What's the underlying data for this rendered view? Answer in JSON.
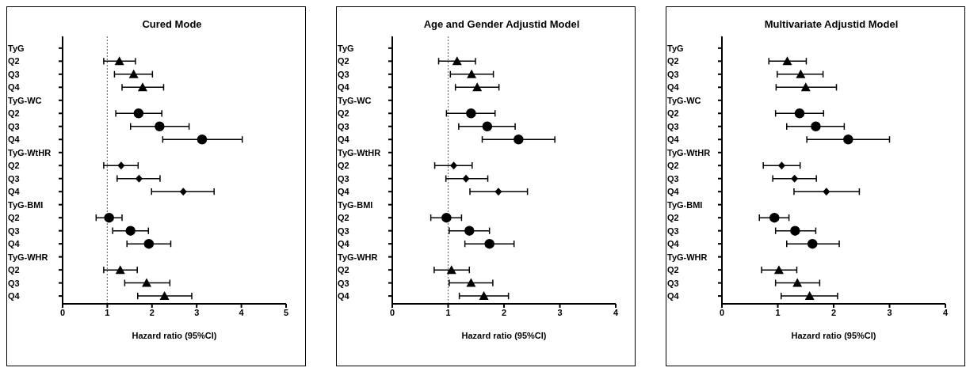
{
  "chart_data": [
    {
      "type": "scatter",
      "orientation": "horizontal",
      "title": "Cured Mode",
      "xlabel": "Hazard ratio (95%CI)",
      "categories": [
        "TyG",
        "Q2",
        "Q3",
        "Q4",
        "TyG-WC",
        "Q2",
        "Q3",
        "Q4",
        "TyG-WtHR",
        "Q2",
        "Q3",
        "Q4",
        "TyG-BMI",
        "Q2",
        "Q3",
        "Q4",
        "TyG-WHR",
        "Q2",
        "Q3",
        "Q4"
      ],
      "xlim": [
        0,
        5
      ],
      "xticks": [
        0,
        1,
        2,
        3,
        4,
        5
      ],
      "grid": false,
      "ref_lines": [
        {
          "axis": "x",
          "value": 1,
          "line_style": "dotted",
          "color": "#777777"
        }
      ],
      "series": [
        {
          "color": "#000000",
          "marker": "triangle",
          "values": [
            null,
            1.27,
            1.59,
            1.79,
            null,
            null,
            null,
            null,
            null,
            null,
            null,
            null,
            null,
            null,
            null,
            null,
            null,
            null,
            null,
            null
          ],
          "errors": [
            null,
            [
              0.92,
              1.63
            ],
            [
              1.16,
              2.01
            ],
            [
              1.33,
              2.26
            ],
            null,
            null,
            null,
            null,
            null,
            null,
            null,
            null,
            null,
            null,
            null,
            null,
            null,
            null,
            null,
            null
          ]
        },
        {
          "color": "#000000",
          "marker": "circle",
          "values": [
            null,
            null,
            null,
            null,
            null,
            1.7,
            2.17,
            3.12,
            null,
            null,
            null,
            null,
            null,
            null,
            null,
            null,
            null,
            null,
            null,
            null
          ],
          "errors": [
            null,
            null,
            null,
            null,
            null,
            [
              1.19,
              2.22
            ],
            [
              1.52,
              2.83
            ],
            [
              2.24,
              4.02
            ],
            null,
            null,
            null,
            null,
            null,
            null,
            null,
            null,
            null,
            null,
            null,
            null
          ]
        },
        {
          "color": "#000000",
          "marker": "diamond",
          "values": [
            null,
            null,
            null,
            null,
            null,
            null,
            null,
            null,
            null,
            1.31,
            1.71,
            2.7,
            null,
            null,
            null,
            null,
            null,
            null,
            null,
            null
          ],
          "errors": [
            null,
            null,
            null,
            null,
            null,
            null,
            null,
            null,
            null,
            [
              0.92,
              1.69
            ],
            [
              1.22,
              2.18
            ],
            [
              1.99,
              3.39
            ],
            null,
            null,
            null,
            null,
            null,
            null,
            null,
            null
          ]
        },
        {
          "color": "#000000",
          "marker": "circle",
          "values": [
            null,
            null,
            null,
            null,
            null,
            null,
            null,
            null,
            null,
            null,
            null,
            null,
            null,
            1.04,
            1.52,
            1.93,
            null,
            null,
            null,
            null
          ],
          "errors": [
            null,
            null,
            null,
            null,
            null,
            null,
            null,
            null,
            null,
            null,
            null,
            null,
            null,
            [
              0.75,
              1.33
            ],
            [
              1.12,
              1.92
            ],
            [
              1.44,
              2.42
            ],
            null,
            null,
            null,
            null
          ]
        },
        {
          "color": "#000000",
          "marker": "triangle",
          "values": [
            null,
            null,
            null,
            null,
            null,
            null,
            null,
            null,
            null,
            null,
            null,
            null,
            null,
            null,
            null,
            null,
            null,
            1.29,
            1.88,
            2.28
          ],
          "errors": [
            null,
            null,
            null,
            null,
            null,
            null,
            null,
            null,
            null,
            null,
            null,
            null,
            null,
            null,
            null,
            null,
            null,
            [
              0.92,
              1.67
            ],
            [
              1.39,
              2.4
            ],
            [
              1.68,
              2.89
            ]
          ]
        }
      ]
    },
    {
      "type": "scatter",
      "orientation": "horizontal",
      "title": "Age and Gender Adjustid Model",
      "xlabel": "Hazard ratio (95%CI)",
      "categories": [
        "TyG",
        "Q2",
        "Q3",
        "Q4",
        "TyG-WC",
        "Q2",
        "Q3",
        "Q4",
        "TyG-WtHR",
        "Q2",
        "Q3",
        "Q4",
        "TyG-BMI",
        "Q2",
        "Q3",
        "Q4",
        "TyG-WHR",
        "Q2",
        "Q3",
        "Q4"
      ],
      "xlim": [
        0,
        4
      ],
      "xticks": [
        0,
        1,
        2,
        3,
        4
      ],
      "grid": false,
      "ref_lines": [
        {
          "axis": "x",
          "value": 1,
          "line_style": "dotted",
          "color": "#777777"
        }
      ],
      "series": [
        {
          "color": "#000000",
          "marker": "triangle",
          "values": [
            null,
            1.16,
            1.42,
            1.52,
            null,
            null,
            null,
            null,
            null,
            null,
            null,
            null,
            null,
            null,
            null,
            null,
            null,
            null,
            null,
            null
          ],
          "errors": [
            null,
            [
              0.83,
              1.49
            ],
            [
              1.04,
              1.81
            ],
            [
              1.13,
              1.91
            ],
            null,
            null,
            null,
            null,
            null,
            null,
            null,
            null,
            null,
            null,
            null,
            null,
            null,
            null,
            null,
            null
          ]
        },
        {
          "color": "#000000",
          "marker": "circle",
          "values": [
            null,
            null,
            null,
            null,
            null,
            1.41,
            1.7,
            2.26,
            null,
            null,
            null,
            null,
            null,
            null,
            null,
            null,
            null,
            null,
            null,
            null
          ],
          "errors": [
            null,
            null,
            null,
            null,
            null,
            [
              0.97,
              1.84
            ],
            [
              1.19,
              2.2
            ],
            [
              1.61,
              2.91
            ],
            null,
            null,
            null,
            null,
            null,
            null,
            null,
            null,
            null,
            null,
            null,
            null
          ]
        },
        {
          "color": "#000000",
          "marker": "diamond",
          "values": [
            null,
            null,
            null,
            null,
            null,
            null,
            null,
            null,
            null,
            1.1,
            1.32,
            1.9,
            null,
            null,
            null,
            null,
            null,
            null,
            null,
            null
          ],
          "errors": [
            null,
            null,
            null,
            null,
            null,
            null,
            null,
            null,
            null,
            [
              0.76,
              1.43
            ],
            [
              0.96,
              1.71
            ],
            [
              1.39,
              2.42
            ],
            null,
            null,
            null,
            null,
            null,
            null,
            null,
            null
          ]
        },
        {
          "color": "#000000",
          "marker": "circle",
          "values": [
            null,
            null,
            null,
            null,
            null,
            null,
            null,
            null,
            null,
            null,
            null,
            null,
            null,
            0.97,
            1.38,
            1.74,
            null,
            null,
            null,
            null
          ],
          "errors": [
            null,
            null,
            null,
            null,
            null,
            null,
            null,
            null,
            null,
            null,
            null,
            null,
            null,
            [
              0.69,
              1.24
            ],
            [
              1.02,
              1.74
            ],
            [
              1.3,
              2.18
            ],
            null,
            null,
            null,
            null
          ]
        },
        {
          "color": "#000000",
          "marker": "triangle",
          "values": [
            null,
            null,
            null,
            null,
            null,
            null,
            null,
            null,
            null,
            null,
            null,
            null,
            null,
            null,
            null,
            null,
            null,
            1.06,
            1.41,
            1.64
          ],
          "errors": [
            null,
            null,
            null,
            null,
            null,
            null,
            null,
            null,
            null,
            null,
            null,
            null,
            null,
            null,
            null,
            null,
            null,
            [
              0.75,
              1.38
            ],
            [
              1.02,
              1.8
            ],
            [
              1.2,
              2.08
            ]
          ]
        }
      ]
    },
    {
      "type": "scatter",
      "orientation": "horizontal",
      "title": "Multivariate Adjustid Model",
      "xlabel": "Hazard ratio (95%CI)",
      "categories": [
        "TyG",
        "Q2",
        "Q3",
        "Q4",
        "TyG-WC",
        "Q2",
        "Q3",
        "Q4",
        "TyG-WtHR",
        "Q2",
        "Q3",
        "Q4",
        "TyG-BMI",
        "Q2",
        "Q3",
        "Q4",
        "TyG-WHR",
        "Q2",
        "Q3",
        "Q4"
      ],
      "xlim": [
        0,
        4
      ],
      "xticks": [
        0,
        1,
        2,
        3,
        4
      ],
      "grid": false,
      "series": [
        {
          "color": "#000000",
          "marker": "triangle",
          "values": [
            null,
            1.17,
            1.41,
            1.5,
            null,
            null,
            null,
            null,
            null,
            null,
            null,
            null,
            null,
            null,
            null,
            null,
            null,
            null,
            null,
            null
          ],
          "errors": [
            null,
            [
              0.84,
              1.51
            ],
            [
              0.99,
              1.81
            ],
            [
              0.97,
              2.05
            ],
            null,
            null,
            null,
            null,
            null,
            null,
            null,
            null,
            null,
            null,
            null,
            null,
            null,
            null,
            null,
            null
          ]
        },
        {
          "color": "#000000",
          "marker": "circle",
          "values": [
            null,
            null,
            null,
            null,
            null,
            1.39,
            1.68,
            2.26,
            null,
            null,
            null,
            null,
            null,
            null,
            null,
            null,
            null,
            null,
            null,
            null
          ],
          "errors": [
            null,
            null,
            null,
            null,
            null,
            [
              0.96,
              1.82
            ],
            [
              1.16,
              2.19
            ],
            [
              1.52,
              3.0
            ],
            null,
            null,
            null,
            null,
            null,
            null,
            null,
            null,
            null,
            null,
            null,
            null
          ]
        },
        {
          "color": "#000000",
          "marker": "diamond",
          "values": [
            null,
            null,
            null,
            null,
            null,
            null,
            null,
            null,
            null,
            1.07,
            1.3,
            1.87,
            null,
            null,
            null,
            null,
            null,
            null,
            null,
            null
          ],
          "errors": [
            null,
            null,
            null,
            null,
            null,
            null,
            null,
            null,
            null,
            [
              0.74,
              1.4
            ],
            [
              0.91,
              1.69
            ],
            [
              1.29,
              2.46
            ],
            null,
            null,
            null,
            null,
            null,
            null,
            null,
            null
          ]
        },
        {
          "color": "#000000",
          "marker": "circle",
          "values": [
            null,
            null,
            null,
            null,
            null,
            null,
            null,
            null,
            null,
            null,
            null,
            null,
            null,
            0.94,
            1.31,
            1.62,
            null,
            null,
            null,
            null
          ],
          "errors": [
            null,
            null,
            null,
            null,
            null,
            null,
            null,
            null,
            null,
            null,
            null,
            null,
            null,
            [
              0.67,
              1.2
            ],
            [
              0.96,
              1.68
            ],
            [
              1.16,
              2.1
            ],
            null,
            null,
            null,
            null
          ]
        },
        {
          "color": "#000000",
          "marker": "triangle",
          "values": [
            null,
            null,
            null,
            null,
            null,
            null,
            null,
            null,
            null,
            null,
            null,
            null,
            null,
            null,
            null,
            null,
            null,
            1.02,
            1.35,
            1.57
          ],
          "errors": [
            null,
            null,
            null,
            null,
            null,
            null,
            null,
            null,
            null,
            null,
            null,
            null,
            null,
            null,
            null,
            null,
            null,
            [
              0.71,
              1.34
            ],
            [
              0.96,
              1.75
            ],
            [
              1.06,
              2.07
            ]
          ]
        }
      ]
    }
  ]
}
